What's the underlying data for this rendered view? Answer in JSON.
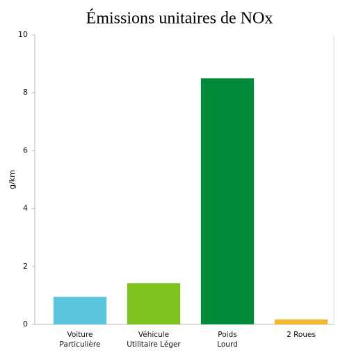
{
  "chart_data": {
    "type": "bar",
    "title": "Émissions unitaires de NOx",
    "ylabel": "g/km",
    "categories": [
      "Voiture\nParticulière",
      "Véhicule\nUtilitaire Léger",
      "Poids\nLourd",
      "2 Roues"
    ],
    "values": [
      0.95,
      1.42,
      8.5,
      0.17
    ],
    "colors": [
      "#5bc5dc",
      "#7dc21e",
      "#008a3a",
      "#f5b82e"
    ],
    "ylim": [
      0,
      10
    ],
    "yticks": [
      0,
      2,
      4,
      6,
      8,
      10
    ],
    "grid": false
  }
}
